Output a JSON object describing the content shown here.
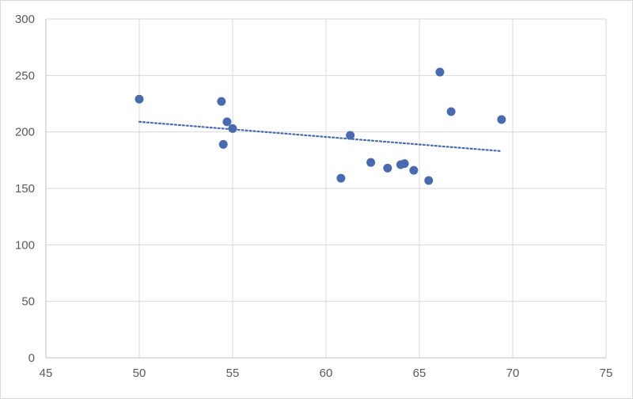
{
  "chart_data": {
    "type": "scatter",
    "title": "",
    "xlabel": "",
    "ylabel": "",
    "xlim": [
      45,
      75
    ],
    "ylim": [
      0,
      300
    ],
    "x_ticks": [
      "45",
      "50",
      "55",
      "60",
      "65",
      "70",
      "75"
    ],
    "y_ticks": [
      "0",
      "50",
      "100",
      "150",
      "200",
      "250",
      "300"
    ],
    "grid": true,
    "legend": "none",
    "marker_color": "#4a6ab0",
    "trendline": {
      "type": "linear",
      "style": "dotted",
      "color": "#4a6ab0",
      "x": [
        50,
        69.4
      ],
      "y": [
        209,
        183
      ]
    },
    "series": [
      {
        "x": [
          50.0,
          54.4,
          54.5,
          54.7,
          55.0,
          60.8,
          61.3,
          62.4,
          63.3,
          64.0,
          64.2,
          64.7,
          65.5,
          66.1,
          66.7,
          69.4
        ],
        "y": [
          229,
          227,
          189,
          209,
          203,
          159,
          197,
          173,
          168,
          171,
          172,
          166,
          157,
          253,
          218,
          211
        ]
      }
    ]
  }
}
